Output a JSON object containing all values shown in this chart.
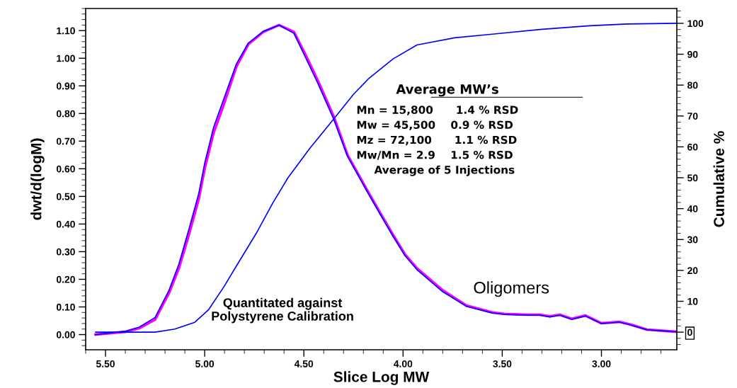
{
  "chart_data": {
    "type": "line",
    "xlabel": "Slice Log MW",
    "ylabel": "dwt/d(logM)",
    "y2label": "Cumulative %",
    "xlim": [
      5.6,
      2.62
    ],
    "ylim": [
      -0.055,
      1.18
    ],
    "y2lim": [
      -5.7,
      104.8
    ],
    "xticks": [
      {
        "value": 5.5,
        "label": "5.50"
      },
      {
        "value": 5.0,
        "label": "5.00"
      },
      {
        "value": 4.5,
        "label": "4.50"
      },
      {
        "value": 4.0,
        "label": "4.00"
      },
      {
        "value": 3.5,
        "label": "3.50"
      },
      {
        "value": 3.0,
        "label": "3.00"
      }
    ],
    "yticks": [
      {
        "value": 0,
        "label": "0.00"
      },
      {
        "value": 0.1,
        "label": "0.10"
      },
      {
        "value": 0.2,
        "label": "0.20"
      },
      {
        "value": 0.3,
        "label": "0.30"
      },
      {
        "value": 0.4,
        "label": "0.40"
      },
      {
        "value": 0.5,
        "label": "0.50"
      },
      {
        "value": 0.6,
        "label": "0.60"
      },
      {
        "value": 0.7,
        "label": "0.70"
      },
      {
        "value": 0.8,
        "label": "0.80"
      },
      {
        "value": 0.9,
        "label": "0.90"
      },
      {
        "value": 1.0,
        "label": "1.00"
      },
      {
        "value": 1.1,
        "label": "1.10"
      }
    ],
    "y2ticks": [
      0,
      10,
      20,
      30,
      40,
      50,
      60,
      70,
      80,
      90,
      100
    ],
    "grid": false,
    "marker": "none",
    "line_style": "solid",
    "series": [
      {
        "color": "#ff00ff",
        "x": [
          5.55,
          5.4,
          5.33,
          5.25,
          5.18,
          5.13,
          5.08,
          5.03,
          5.0,
          4.955,
          4.905,
          4.84,
          4.78,
          4.705,
          4.625,
          4.55,
          4.49,
          4.43,
          4.35,
          4.28,
          4.175,
          4.115,
          4.05,
          3.99,
          3.93,
          3.8,
          3.68,
          3.55,
          3.49,
          3.37,
          3.31,
          3.26,
          3.21,
          3.15,
          3.08,
          3.0,
          2.91,
          2.86,
          2.77,
          2.62
        ],
        "values": [
          0,
          0.01,
          0.023,
          0.054,
          0.15,
          0.24,
          0.36,
          0.49,
          0.6,
          0.73,
          0.83,
          0.97,
          1.05,
          1.095,
          1.12,
          1.095,
          1.01,
          0.92,
          0.79,
          0.65,
          0.515,
          0.44,
          0.36,
          0.29,
          0.24,
          0.16,
          0.105,
          0.08,
          0.075,
          0.072,
          0.072,
          0.066,
          0.072,
          0.057,
          0.069,
          0.041,
          0.046,
          0.038,
          0.018,
          0.01
        ]
      },
      {
        "color": "#0000ff",
        "x": [
          5.55,
          5.4,
          5.33,
          5.25,
          5.18,
          5.13,
          5.08,
          5.03,
          5.0,
          4.955,
          4.905,
          4.84,
          4.78,
          4.705,
          4.625,
          4.55,
          4.49,
          4.43,
          4.35,
          4.28,
          4.175,
          4.115,
          4.05,
          3.99,
          3.93,
          3.8,
          3.68,
          3.55,
          3.49,
          3.37,
          3.31,
          3.26,
          3.21,
          3.15,
          3.08,
          3.0,
          2.91,
          2.86,
          2.77,
          2.62
        ],
        "values": [
          0,
          0.012,
          0.027,
          0.062,
          0.16,
          0.255,
          0.38,
          0.51,
          0.62,
          0.75,
          0.85,
          0.98,
          1.055,
          1.097,
          1.12,
          1.09,
          1.0,
          0.91,
          0.78,
          0.645,
          0.51,
          0.435,
          0.355,
          0.285,
          0.235,
          0.155,
          0.102,
          0.078,
          0.073,
          0.07,
          0.07,
          0.064,
          0.07,
          0.055,
          0.067,
          0.04,
          0.045,
          0.036,
          0.017,
          0.01
        ]
      },
      {
        "color": "#0000ff",
        "axis": "y2",
        "x": [
          5.55,
          5.25,
          5.15,
          5.05,
          4.98,
          4.905,
          4.83,
          4.74,
          4.655,
          4.58,
          4.47,
          4.35,
          4.25,
          4.175,
          4.05,
          3.93,
          3.74,
          3.55,
          3.31,
          3.06,
          2.87,
          2.62
        ],
        "values": [
          0,
          0,
          1,
          3.2,
          7.3,
          14.5,
          22.5,
          32,
          42,
          50,
          59.5,
          69,
          77,
          82,
          88.5,
          93,
          95.3,
          96.5,
          98,
          99.2,
          99.8,
          100
        ]
      }
    ],
    "annotations": [
      "Average MW’s",
      "Mn = 15,800      1.4 % RSD",
      "Mw = 45,500    0.9 % RSD",
      "Mz = 72,100      1.1 % RSD",
      "Mw/Mn = 2.9    1.5 % RSD",
      "Average of 5 Injections",
      "Quantitated against\nPolystyrene Calibration",
      "Oligomers"
    ]
  }
}
